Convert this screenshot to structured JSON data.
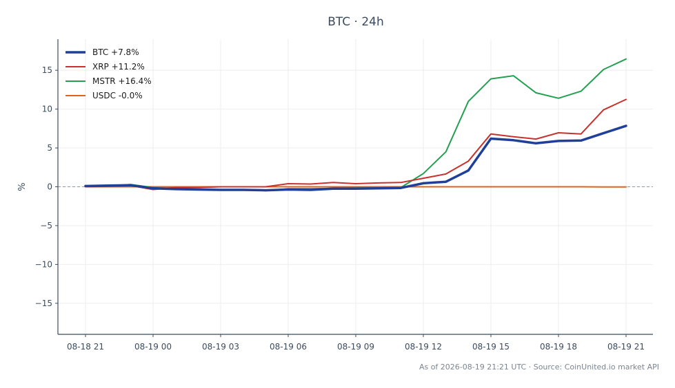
{
  "chart_data": {
    "type": "line",
    "title": "BTC · 24h",
    "ylabel": "%",
    "xlabel": "",
    "ylim": [
      -19,
      19
    ],
    "yticks": [
      -15,
      -10,
      -5,
      0,
      5,
      10,
      15
    ],
    "x": [
      "08-18 21",
      "08-18 22",
      "08-18 23",
      "08-19 00",
      "08-19 01",
      "08-19 02",
      "08-19 03",
      "08-19 04",
      "08-19 05",
      "08-19 06",
      "08-19 07",
      "08-19 08",
      "08-19 09",
      "08-19 10",
      "08-19 11",
      "08-19 12",
      "08-19 13",
      "08-19 14",
      "08-19 15",
      "08-19 16",
      "08-19 17",
      "08-19 18",
      "08-19 19",
      "08-19 20",
      "08-19 21"
    ],
    "xticks": [
      "08-18 21",
      "08-19 00",
      "08-19 03",
      "08-19 06",
      "08-19 09",
      "08-19 12",
      "08-19 15",
      "08-19 18",
      "08-19 21"
    ],
    "grid": true,
    "zero_line": true,
    "legend_position": "top-left",
    "series": [
      {
        "name": "BTC +7.8%",
        "color": "#1f3f99",
        "width": 3.5,
        "values": [
          0.1,
          0.15,
          0.2,
          -0.2,
          -0.3,
          -0.35,
          -0.4,
          -0.4,
          -0.45,
          -0.35,
          -0.4,
          -0.25,
          -0.25,
          -0.2,
          -0.15,
          0.45,
          0.65,
          2.1,
          6.2,
          6.0,
          5.6,
          5.9,
          5.95,
          6.9,
          7.85
        ]
      },
      {
        "name": "XRP +11.2%",
        "color": "#c9302c",
        "width": 2,
        "values": [
          0.0,
          0.05,
          0.15,
          -0.35,
          -0.1,
          -0.1,
          0.0,
          0.0,
          0.0,
          0.4,
          0.35,
          0.55,
          0.4,
          0.5,
          0.55,
          1.1,
          1.65,
          3.3,
          6.8,
          6.45,
          6.15,
          6.95,
          6.8,
          9.9,
          11.25
        ]
      },
      {
        "name": "MSTR +16.4%",
        "color": "#22a050",
        "width": 2,
        "values": [
          0.05,
          0.1,
          0.3,
          -0.1,
          -0.3,
          -0.35,
          -0.4,
          -0.4,
          -0.5,
          -0.25,
          -0.25,
          -0.2,
          -0.15,
          -0.15,
          -0.1,
          1.7,
          4.5,
          11.0,
          13.9,
          14.3,
          12.1,
          11.4,
          12.3,
          15.1,
          16.45
        ]
      },
      {
        "name": "USDC -0.0%",
        "color": "#e0621a",
        "width": 2,
        "values": [
          0.0,
          0.0,
          0.0,
          0.0,
          0.0,
          0.0,
          0.0,
          0.0,
          0.0,
          0.0,
          0.0,
          0.0,
          0.0,
          0.0,
          0.0,
          0.0,
          0.0,
          0.0,
          0.0,
          0.0,
          0.0,
          0.0,
          0.0,
          -0.02,
          -0.02
        ]
      }
    ]
  },
  "footer": {
    "text": "As of 2026-08-19 21:21 UTC · Source: CoinUnited.io market API"
  }
}
